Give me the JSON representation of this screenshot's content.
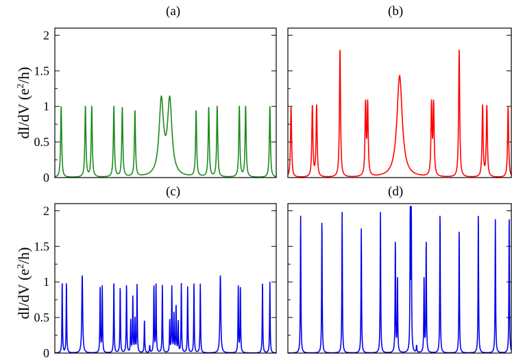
{
  "colors": {
    "a": "#1a8a1a",
    "b": "#ff0000",
    "c": "#0000ee",
    "d": "#0000ee",
    "frame": "#000000"
  },
  "ylabel": {
    "main": "dI/dV (e",
    "sup": "2",
    "tail": "/h)"
  },
  "chart_data": [
    {
      "panel": "(a)",
      "type": "line",
      "ylim": [
        0,
        2.1
      ],
      "yticks": [
        "0",
        "0.5",
        "1",
        "1.5",
        "2"
      ],
      "series": [
        {
          "peaks": [
            {
              "x": -0.76,
              "h": 1.0,
              "w": 0.006
            },
            {
              "x": -0.7,
              "h": 1.0,
              "w": 0.006
            },
            {
              "x": -0.49,
              "h": 1.0,
              "w": 0.006
            },
            {
              "x": -0.41,
              "h": 0.98,
              "w": 0.006
            },
            {
              "x": -0.29,
              "h": 0.93,
              "w": 0.006
            },
            {
              "x": -0.04,
              "h": 1.05,
              "w": 0.025
            },
            {
              "x": 0.04,
              "h": 1.05,
              "w": 0.025
            },
            {
              "x": 0.29,
              "h": 0.93,
              "w": 0.006
            },
            {
              "x": 0.41,
              "h": 0.98,
              "w": 0.006
            },
            {
              "x": 0.49,
              "h": 1.0,
              "w": 0.006
            },
            {
              "x": 0.7,
              "h": 1.0,
              "w": 0.006
            },
            {
              "x": 0.76,
              "h": 1.0,
              "w": 0.006
            },
            {
              "x": 0.99,
              "h": 1.0,
              "w": 0.006
            },
            {
              "x": -0.99,
              "h": 1.0,
              "w": 0.006
            }
          ]
        }
      ]
    },
    {
      "panel": "(b)",
      "type": "line",
      "ylim": [
        0,
        2.1
      ],
      "yticks": [],
      "series": [
        {
          "peaks": [
            {
              "x": -0.82,
              "h": 1.0,
              "w": 0.006
            },
            {
              "x": -0.78,
              "h": 1.0,
              "w": 0.006
            },
            {
              "x": -0.56,
              "h": 1.8,
              "w": 0.006
            },
            {
              "x": -0.32,
              "h": 1.0,
              "w": 0.006
            },
            {
              "x": -0.3,
              "h": 1.0,
              "w": 0.006
            },
            {
              "x": 0.0,
              "h": 1.43,
              "w": 0.03
            },
            {
              "x": 0.3,
              "h": 1.0,
              "w": 0.006
            },
            {
              "x": 0.32,
              "h": 1.0,
              "w": 0.006
            },
            {
              "x": 0.56,
              "h": 1.8,
              "w": 0.006
            },
            {
              "x": 0.78,
              "h": 1.0,
              "w": 0.006
            },
            {
              "x": 0.82,
              "h": 1.0,
              "w": 0.006
            },
            {
              "x": -1.02,
              "h": 1.0,
              "w": 0.006
            },
            {
              "x": 1.02,
              "h": 1.0,
              "w": 0.006
            }
          ]
        }
      ]
    },
    {
      "panel": "(c)",
      "type": "line",
      "ylim": [
        0,
        2.1
      ],
      "yticks": [
        "0",
        "0.5",
        "1",
        "1.5",
        "2"
      ],
      "series": [
        {
          "peaks": [
            {
              "x": -0.98,
              "h": 1.0,
              "w": 0.003
            },
            {
              "x": -0.94,
              "h": 1.0,
              "w": 0.003
            },
            {
              "x": -0.79,
              "h": 1.1,
              "w": 0.005
            },
            {
              "x": -0.62,
              "h": 0.93,
              "w": 0.003
            },
            {
              "x": -0.6,
              "h": 0.93,
              "w": 0.003
            },
            {
              "x": -0.49,
              "h": 1.0,
              "w": 0.003
            },
            {
              "x": -0.43,
              "h": 0.93,
              "w": 0.003
            },
            {
              "x": -0.37,
              "h": 0.97,
              "w": 0.003
            },
            {
              "x": -0.33,
              "h": 0.45,
              "w": 0.003
            },
            {
              "x": -0.31,
              "h": 0.8,
              "w": 0.003
            },
            {
              "x": -0.29,
              "h": 0.48,
              "w": 0.003
            },
            {
              "x": -0.27,
              "h": 0.95,
              "w": 0.003
            },
            {
              "x": -0.2,
              "h": 0.46,
              "w": 0.003
            },
            {
              "x": -0.15,
              "h": 0.1,
              "w": 0.003
            },
            {
              "x": -0.11,
              "h": 0.95,
              "w": 0.003
            },
            {
              "x": -0.09,
              "h": 0.95,
              "w": 0.003
            },
            {
              "x": -0.03,
              "h": 0.95,
              "w": 0.003
            },
            {
              "x": 0.04,
              "h": 0.46,
              "w": 0.003
            },
            {
              "x": 0.06,
              "h": 0.92,
              "w": 0.003
            },
            {
              "x": 0.08,
              "h": 0.55,
              "w": 0.003
            },
            {
              "x": 0.1,
              "h": 0.66,
              "w": 0.003
            },
            {
              "x": 0.12,
              "h": 0.43,
              "w": 0.003
            },
            {
              "x": 0.15,
              "h": 0.97,
              "w": 0.003
            },
            {
              "x": 0.21,
              "h": 0.93,
              "w": 0.003
            },
            {
              "x": 0.27,
              "h": 0.97,
              "w": 0.003
            },
            {
              "x": 0.33,
              "h": 0.97,
              "w": 0.003
            },
            {
              "x": 0.52,
              "h": 1.1,
              "w": 0.005
            },
            {
              "x": 0.69,
              "h": 0.93,
              "w": 0.003
            },
            {
              "x": 0.71,
              "h": 0.93,
              "w": 0.003
            },
            {
              "x": 0.92,
              "h": 1.0,
              "w": 0.003
            },
            {
              "x": 0.99,
              "h": 1.0,
              "w": 0.003
            }
          ]
        }
      ]
    },
    {
      "panel": "(d)",
      "type": "line",
      "ylim": [
        0,
        2.1
      ],
      "yticks": [],
      "series": [
        {
          "peaks": [
            {
              "x": -0.93,
              "h": 1.93,
              "w": 0.003
            },
            {
              "x": -0.73,
              "h": 1.88,
              "w": 0.003
            },
            {
              "x": -0.54,
              "h": 1.98,
              "w": 0.003
            },
            {
              "x": -0.36,
              "h": 1.75,
              "w": 0.003
            },
            {
              "x": -0.18,
              "h": 1.98,
              "w": 0.003
            },
            {
              "x": -0.04,
              "h": 1.58,
              "w": 0.003
            },
            {
              "x": -0.02,
              "h": 1.06,
              "w": 0.003
            },
            {
              "x": 0.1,
              "h": 1.94,
              "w": 0.003
            },
            {
              "x": 0.11,
              "h": 1.94,
              "w": 0.003
            },
            {
              "x": 0.16,
              "h": 0.1,
              "w": 0.003
            },
            {
              "x": 0.23,
              "h": 1.06,
              "w": 0.003
            },
            {
              "x": 0.25,
              "h": 1.58,
              "w": 0.003
            },
            {
              "x": 0.38,
              "h": 1.98,
              "w": 0.003
            },
            {
              "x": 0.56,
              "h": 1.75,
              "w": 0.003
            },
            {
              "x": 0.74,
              "h": 1.98,
              "w": 0.003
            },
            {
              "x": 0.9,
              "h": 1.88,
              "w": 0.003
            },
            {
              "x": 1.03,
              "h": 1.93,
              "w": 0.003
            }
          ]
        }
      ]
    }
  ]
}
